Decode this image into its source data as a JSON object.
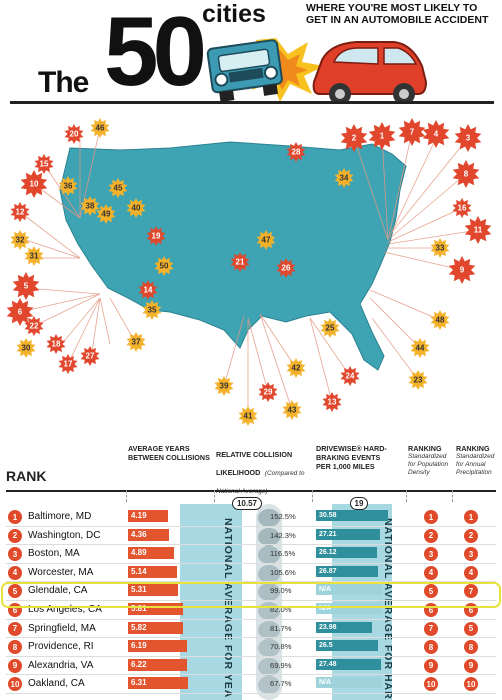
{
  "header": {
    "the": "The",
    "fifty": "50",
    "cities": "cities",
    "subtitle": "WHERE YOU'RE MOST LIKELY TO GET IN AN AUTOMOBILE ACCIDENT"
  },
  "colors": {
    "accent_red": "#e2552f",
    "map_teal": "#3ea3b3",
    "burst_orange": "#f4b12a",
    "burst_red": "#e0472c",
    "highlight": "#e8e23c"
  },
  "map": {
    "bursts": [
      {
        "label": "20",
        "color": "red"
      },
      {
        "label": "46",
        "color": "orange"
      },
      {
        "label": "15",
        "color": "red"
      },
      {
        "label": "10",
        "color": "red"
      },
      {
        "label": "36",
        "color": "orange"
      },
      {
        "label": "45",
        "color": "orange"
      },
      {
        "label": "38",
        "color": "orange"
      },
      {
        "label": "49",
        "color": "orange"
      },
      {
        "label": "40",
        "color": "orange"
      },
      {
        "label": "12",
        "color": "red"
      },
      {
        "label": "32",
        "color": "orange"
      },
      {
        "label": "31",
        "color": "orange"
      },
      {
        "label": "19",
        "color": "red"
      },
      {
        "label": "50",
        "color": "orange"
      },
      {
        "label": "47",
        "color": "orange"
      },
      {
        "label": "21",
        "color": "red"
      },
      {
        "label": "26",
        "color": "red"
      },
      {
        "label": "28",
        "color": "red"
      },
      {
        "label": "34",
        "color": "orange"
      },
      {
        "label": "5",
        "color": "red"
      },
      {
        "label": "6",
        "color": "red"
      },
      {
        "label": "22",
        "color": "red"
      },
      {
        "label": "14",
        "color": "red"
      },
      {
        "label": "35",
        "color": "orange"
      },
      {
        "label": "30",
        "color": "orange"
      },
      {
        "label": "18",
        "color": "red"
      },
      {
        "label": "17",
        "color": "red"
      },
      {
        "label": "27",
        "color": "red"
      },
      {
        "label": "37",
        "color": "orange"
      },
      {
        "label": "2",
        "color": "red"
      },
      {
        "label": "1",
        "color": "red"
      },
      {
        "label": "7",
        "color": "red"
      },
      {
        "label": "4",
        "color": "red"
      },
      {
        "label": "3",
        "color": "red"
      },
      {
        "label": "8",
        "color": "red"
      },
      {
        "label": "16",
        "color": "red"
      },
      {
        "label": "11",
        "color": "red"
      },
      {
        "label": "33",
        "color": "orange"
      },
      {
        "label": "9",
        "color": "red"
      },
      {
        "label": "48",
        "color": "orange"
      },
      {
        "label": "44",
        "color": "orange"
      },
      {
        "label": "23",
        "color": "orange"
      },
      {
        "label": "24",
        "color": "red"
      },
      {
        "label": "39",
        "color": "orange"
      },
      {
        "label": "42",
        "color": "orange"
      },
      {
        "label": "29",
        "color": "red"
      },
      {
        "label": "41",
        "color": "orange"
      },
      {
        "label": "43",
        "color": "orange"
      },
      {
        "label": "13",
        "color": "red"
      },
      {
        "label": "25",
        "color": "orange"
      }
    ]
  },
  "table": {
    "rank_header": "RANK",
    "col_avg_years": "AVERAGE YEARS BETWEEN COLLISIONS",
    "col_relative": "RELATIVE COLLISION LIKELIHOOD",
    "col_relative_sub": "(Compared to National Average)",
    "col_drivewise": "DRIVEWISE® HARD-BRAKING EVENTS PER 1,000 MILES",
    "col_rank_density": "RANKING",
    "col_rank_density_sub": "Standardized for Population Density",
    "col_rank_precip": "RANKING",
    "col_rank_precip_sub": "Standardized for Annual Precipitation",
    "national_avg_years": "10.57",
    "national_avg_braking": "19",
    "vertical_avg_years": "NATIONAL AVERAGE FOR YEA",
    "vertical_avg_braking": "NATIONAL AVERAGE FOR HAR",
    "rows": [
      {
        "rank": "1",
        "city": "Baltimore, MD",
        "years": "4.19",
        "years_frac": 0.4,
        "pct": "152.5%",
        "braking": "30.58",
        "braking_frac": 0.6,
        "density": "1",
        "precip": "1"
      },
      {
        "rank": "2",
        "city": "Washington, DC",
        "years": "4.36",
        "years_frac": 0.41,
        "pct": "142.3%",
        "braking": "27.21",
        "braking_frac": 0.53,
        "density": "2",
        "precip": "2"
      },
      {
        "rank": "3",
        "city": "Boston, MA",
        "years": "4.89",
        "years_frac": 0.46,
        "pct": "116.5%",
        "braking": "26.12",
        "braking_frac": 0.51,
        "density": "3",
        "precip": "3"
      },
      {
        "rank": "4",
        "city": "Worcester, MA",
        "years": "5.14",
        "years_frac": 0.49,
        "pct": "105.6%",
        "braking": "26.87",
        "braking_frac": 0.52,
        "density": "4",
        "precip": "4"
      },
      {
        "rank": "5",
        "city": "Glendale, CA",
        "years": "5.31",
        "years_frac": 0.5,
        "pct": "99.0%",
        "braking": "N/A",
        "braking_frac": 0,
        "density": "5",
        "precip": "7"
      },
      {
        "rank": "6",
        "city": "Los Angeles, CA",
        "years": "5.81",
        "years_frac": 0.55,
        "pct": "82.0%",
        "braking": "N/A",
        "braking_frac": 0,
        "density": "6",
        "precip": "6"
      },
      {
        "rank": "7",
        "city": "Springfield, MA",
        "years": "5.82",
        "years_frac": 0.55,
        "pct": "81.7%",
        "braking": "23.98",
        "braking_frac": 0.47,
        "density": "7",
        "precip": "5"
      },
      {
        "rank": "8",
        "city": "Providence, RI",
        "years": "6.19",
        "years_frac": 0.59,
        "pct": "70.8%",
        "braking": "26.5",
        "braking_frac": 0.52,
        "density": "8",
        "precip": "8"
      },
      {
        "rank": "9",
        "city": "Alexandria, VA",
        "years": "6.22",
        "years_frac": 0.59,
        "pct": "69.9%",
        "braking": "27.48",
        "braking_frac": 0.54,
        "density": "9",
        "precip": "9"
      },
      {
        "rank": "10",
        "city": "Oakland, CA",
        "years": "6.31",
        "years_frac": 0.6,
        "pct": "67.7%",
        "braking": "N/A",
        "braking_frac": 0,
        "density": "10",
        "precip": "10"
      }
    ]
  }
}
